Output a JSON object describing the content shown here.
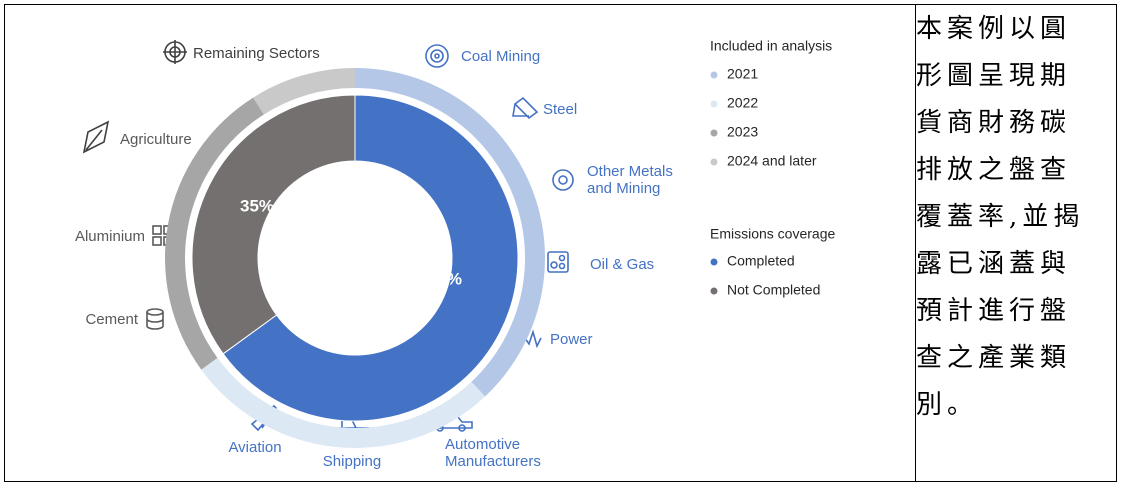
{
  "chart_data": {
    "type": "pie",
    "legend_title": "Emissions coverage",
    "categories": [
      "Completed",
      "Not Completed"
    ],
    "values": [
      65,
      35
    ],
    "value_labels": [
      "65%",
      "35%"
    ],
    "colors": [
      "#4472c4",
      "#757070"
    ],
    "outer": {
      "legend_title": "Included in analysis",
      "categories": [
        "2021",
        "2022",
        "2023",
        "2024 and later"
      ],
      "values": [
        38,
        27,
        26,
        9
      ],
      "colors": [
        "#b4c7e7",
        "#dde8f5",
        "#a6a6a6",
        "#c9c9c9"
      ]
    },
    "sector_labels": [
      {
        "lines": [
          "Coal Mining"
        ],
        "color": "#4472c4"
      },
      {
        "lines": [
          "Steel"
        ],
        "color": "#4472c4"
      },
      {
        "lines": [
          "Other Metals",
          "and Mining"
        ],
        "color": "#4472c4"
      },
      {
        "lines": [
          "Oil & Gas"
        ],
        "color": "#4472c4"
      },
      {
        "lines": [
          "Power"
        ],
        "color": "#4472c4"
      },
      {
        "lines": [
          "Automotive",
          "Manufacturers"
        ],
        "color": "#4472c4"
      },
      {
        "lines": [
          "Shipping"
        ],
        "color": "#4472c4"
      },
      {
        "lines": [
          "Aviation"
        ],
        "color": "#4472c4"
      },
      {
        "lines": [
          "Cement"
        ],
        "color": "#595959"
      },
      {
        "lines": [
          "Aluminium"
        ],
        "color": "#595959"
      },
      {
        "lines": [
          "Agriculture"
        ],
        "color": "#595959"
      },
      {
        "lines": [
          "Remaining Sectors"
        ],
        "color": "#404040"
      }
    ]
  },
  "text_lines": [
    "本案例以圓",
    "形圖呈現期",
    "貨商財務碳",
    "排放之盤查",
    "覆蓋率,並揭",
    "露已涵蓋與",
    "預計進行盤",
    "查之產業類",
    "別。"
  ]
}
